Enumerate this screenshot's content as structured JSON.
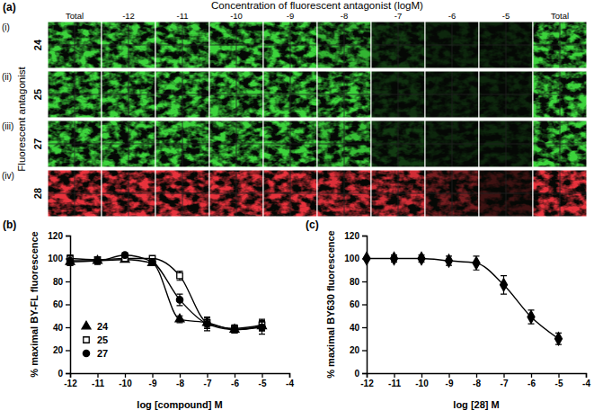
{
  "panel_a": {
    "label": "(a)",
    "title": "Concentration of fluorescent antagonist (logM)",
    "columns": [
      "Total",
      "-12",
      "-11",
      "-10",
      "-9",
      "-8",
      "-7",
      "-6",
      "-5",
      "Total"
    ],
    "row_title": "Fluorescent antagonist",
    "rows": [
      {
        "label": "(i)",
        "compound": "24",
        "color": "#3cd43c",
        "intensity": [
          1,
          1,
          1,
          1,
          1,
          0.85,
          0.25,
          0.15,
          0.15,
          1
        ]
      },
      {
        "label": "(ii)",
        "compound": "25",
        "color": "#3cd43c",
        "intensity": [
          1,
          1,
          1,
          1,
          1,
          1,
          0.2,
          0.15,
          0.15,
          1
        ]
      },
      {
        "label": "(iii)",
        "compound": "27",
        "color": "#3cd43c",
        "intensity": [
          1,
          1,
          1,
          1,
          1,
          0.9,
          0.25,
          0.15,
          0.15,
          1
        ]
      },
      {
        "label": "(iv)",
        "compound": "28",
        "color": "#e8323c",
        "intensity": [
          1,
          1,
          1,
          1,
          1,
          0.95,
          0.9,
          0.5,
          0.25,
          1
        ]
      }
    ]
  },
  "chart_data": [
    {
      "label": "(b)",
      "type": "line",
      "x_label": "log [compound] M",
      "y_label": "% maximal BY-FL fluorescence",
      "x": [
        -12,
        -11,
        -10,
        -9,
        -8,
        -7,
        -6,
        -5
      ],
      "xlim": [
        -12,
        -4
      ],
      "xticks": [
        -12,
        -11,
        -10,
        -9,
        -8,
        -7,
        -6,
        -5,
        -4
      ],
      "ylim": [
        0,
        120
      ],
      "yticks": [
        0,
        20,
        40,
        60,
        80,
        100,
        120
      ],
      "legend": "lower left",
      "series": [
        {
          "name": "24",
          "color": "#000000",
          "marker": "triangle",
          "values": [
            97,
            98,
            99,
            96,
            47,
            44,
            38,
            41
          ],
          "errors": [
            3,
            3,
            2,
            2,
            3,
            4,
            3,
            4
          ]
        },
        {
          "name": "25",
          "color": "#000000",
          "marker": "square-open",
          "values": [
            100,
            99,
            100,
            100,
            85,
            44,
            39,
            42
          ],
          "errors": [
            3,
            2,
            2,
            2,
            4,
            5,
            3,
            5
          ]
        },
        {
          "name": "27",
          "color": "#000000",
          "marker": "circle",
          "values": [
            98,
            98,
            103,
            97,
            64,
            43,
            38,
            40
          ],
          "errors": [
            4,
            3,
            2,
            3,
            5,
            6,
            3,
            6
          ]
        }
      ]
    },
    {
      "label": "(c)",
      "type": "line",
      "x_label": "log [28] M",
      "y_label": "% maximal BY630 fluorescence",
      "x": [
        -12,
        -11,
        -10,
        -9,
        -8,
        -7,
        -6,
        -5
      ],
      "xlim": [
        -12,
        -4
      ],
      "xticks": [
        -12,
        -11,
        -10,
        -9,
        -8,
        -7,
        -6,
        -5,
        -4
      ],
      "ylim": [
        0,
        120
      ],
      "yticks": [
        0,
        20,
        40,
        60,
        80,
        100,
        120
      ],
      "series": [
        {
          "color": "#000000",
          "marker": "diamond",
          "values": [
            100,
            100,
            100,
            98,
            96,
            77,
            49,
            30
          ],
          "errors": [
            1,
            3,
            3,
            4,
            6,
            8,
            6,
            5
          ]
        }
      ]
    }
  ]
}
